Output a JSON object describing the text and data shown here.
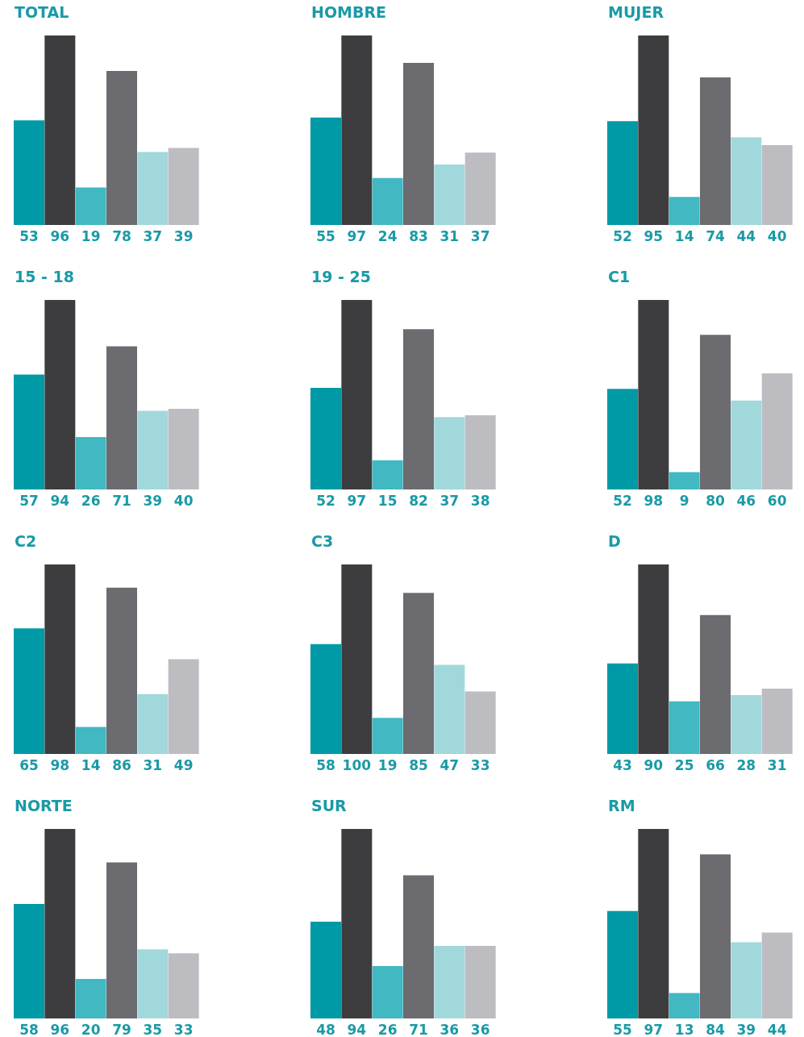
{
  "chart_data": [
    {
      "type": "bar",
      "title": "TOTAL",
      "categories": [
        null,
        null,
        null,
        null,
        null,
        null
      ],
      "values": [
        53,
        96,
        19,
        78,
        37,
        39
      ],
      "colors": [
        "#009aa6",
        "#3d3d3f",
        "#41b8c2",
        "#6b6b70",
        "#a1d8dc",
        "#bcbcc1"
      ],
      "data_labels": true
    },
    {
      "type": "bar",
      "title": "HOMBRE",
      "categories": [
        null,
        null,
        null,
        null,
        null,
        null
      ],
      "values": [
        55,
        97,
        24,
        83,
        31,
        37
      ],
      "colors": [
        "#009aa6",
        "#3d3d3f",
        "#41b8c2",
        "#6b6b70",
        "#a1d8dc",
        "#bcbcc1"
      ],
      "data_labels": true
    },
    {
      "type": "bar",
      "title": "MUJER",
      "categories": [
        null,
        null,
        null,
        null,
        null,
        null
      ],
      "values": [
        52,
        95,
        14,
        74,
        44,
        40
      ],
      "colors": [
        "#009aa6",
        "#3d3d3f",
        "#41b8c2",
        "#6b6b70",
        "#a1d8dc",
        "#bcbcc1"
      ],
      "data_labels": true
    },
    {
      "type": "bar",
      "title": "15 - 18",
      "categories": [
        null,
        null,
        null,
        null,
        null,
        null
      ],
      "values": [
        57,
        94,
        26,
        71,
        39,
        40
      ],
      "colors": [
        "#009aa6",
        "#3d3d3f",
        "#41b8c2",
        "#6b6b70",
        "#a1d8dc",
        "#bcbcc1"
      ],
      "data_labels": true
    },
    {
      "type": "bar",
      "title": "19 - 25",
      "categories": [
        null,
        null,
        null,
        null,
        null,
        null
      ],
      "values": [
        52,
        97,
        15,
        82,
        37,
        38
      ],
      "colors": [
        "#009aa6",
        "#3d3d3f",
        "#41b8c2",
        "#6b6b70",
        "#a1d8dc",
        "#bcbcc1"
      ],
      "data_labels": true
    },
    {
      "type": "bar",
      "title": "C1",
      "categories": [
        null,
        null,
        null,
        null,
        null,
        null
      ],
      "values": [
        52,
        98,
        9,
        80,
        46,
        60
      ],
      "colors": [
        "#009aa6",
        "#3d3d3f",
        "#41b8c2",
        "#6b6b70",
        "#a1d8dc",
        "#bcbcc1"
      ],
      "data_labels": true
    },
    {
      "type": "bar",
      "title": "C2",
      "categories": [
        null,
        null,
        null,
        null,
        null,
        null
      ],
      "values": [
        65,
        98,
        14,
        86,
        31,
        49
      ],
      "colors": [
        "#009aa6",
        "#3d3d3f",
        "#41b8c2",
        "#6b6b70",
        "#a1d8dc",
        "#bcbcc1"
      ],
      "data_labels": true
    },
    {
      "type": "bar",
      "title": "C3",
      "categories": [
        null,
        null,
        null,
        null,
        null,
        null
      ],
      "values": [
        58,
        100,
        19,
        85,
        47,
        33
      ],
      "colors": [
        "#009aa6",
        "#3d3d3f",
        "#41b8c2",
        "#6b6b70",
        "#a1d8dc",
        "#bcbcc1"
      ],
      "data_labels": true
    },
    {
      "type": "bar",
      "title": "D",
      "categories": [
        null,
        null,
        null,
        null,
        null,
        null
      ],
      "values": [
        43,
        90,
        25,
        66,
        28,
        31
      ],
      "colors": [
        "#009aa6",
        "#3d3d3f",
        "#41b8c2",
        "#6b6b70",
        "#a1d8dc",
        "#bcbcc1"
      ],
      "data_labels": true
    },
    {
      "type": "bar",
      "title": "NORTE",
      "categories": [
        null,
        null,
        null,
        null,
        null,
        null
      ],
      "values": [
        58,
        96,
        20,
        79,
        35,
        33
      ],
      "colors": [
        "#009aa6",
        "#3d3d3f",
        "#41b8c2",
        "#6b6b70",
        "#a1d8dc",
        "#bcbcc1"
      ],
      "data_labels": true
    },
    {
      "type": "bar",
      "title": "SUR",
      "categories": [
        null,
        null,
        null,
        null,
        null,
        null
      ],
      "values": [
        48,
        94,
        26,
        71,
        36,
        36
      ],
      "colors": [
        "#009aa6",
        "#3d3d3f",
        "#41b8c2",
        "#6b6b70",
        "#a1d8dc",
        "#bcbcc1"
      ],
      "data_labels": true
    },
    {
      "type": "bar",
      "title": "RM",
      "categories": [
        null,
        null,
        null,
        null,
        null,
        null
      ],
      "values": [
        55,
        97,
        13,
        84,
        39,
        44
      ],
      "colors": [
        "#009aa6",
        "#3d3d3f",
        "#41b8c2",
        "#6b6b70",
        "#a1d8dc",
        "#bcbcc1"
      ],
      "data_labels": true
    }
  ]
}
